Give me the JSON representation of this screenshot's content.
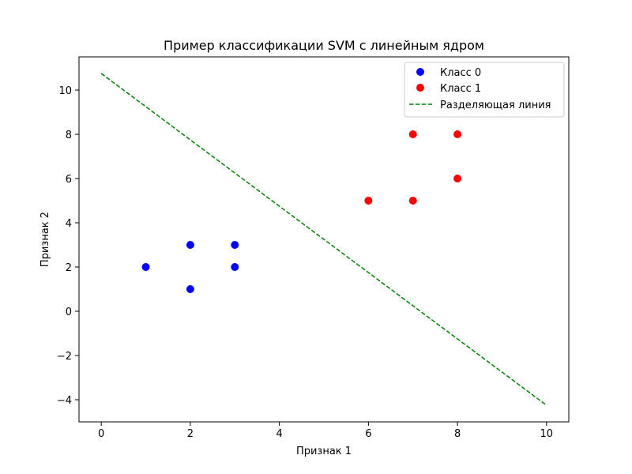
{
  "chart_data": {
    "type": "scatter",
    "title": "Пример классификации SVM с линейным ядром",
    "xlabel": "Признак 1",
    "ylabel": "Признак 2",
    "xlim": [
      -0.5,
      10.5
    ],
    "ylim": [
      -5,
      11.5
    ],
    "xticks": [
      0,
      2,
      4,
      6,
      8,
      10
    ],
    "xtick_labels": [
      "0",
      "2",
      "4",
      "6",
      "8",
      "10"
    ],
    "yticks": [
      -4,
      -2,
      0,
      2,
      4,
      6,
      8,
      10
    ],
    "ytick_labels": [
      "−4",
      "−2",
      "0",
      "2",
      "4",
      "6",
      "8",
      "10"
    ],
    "grid": false,
    "legend_position": "top-right",
    "series": [
      {
        "name": "Класс 0",
        "kind": "scatter",
        "color": "#0000ff",
        "points": [
          [
            1,
            2
          ],
          [
            2,
            1
          ],
          [
            2,
            3
          ],
          [
            3,
            2
          ],
          [
            3,
            3
          ]
        ]
      },
      {
        "name": "Класс 1",
        "kind": "scatter",
        "color": "#ff0000",
        "points": [
          [
            6,
            5
          ],
          [
            7,
            5
          ],
          [
            7,
            8
          ],
          [
            8,
            6
          ],
          [
            8,
            8
          ]
        ]
      },
      {
        "name": "Разделяющая линия",
        "kind": "line",
        "style": "dashed",
        "color": "#008000",
        "points": [
          [
            0,
            10.75
          ],
          [
            10,
            -4.25
          ]
        ]
      }
    ]
  }
}
